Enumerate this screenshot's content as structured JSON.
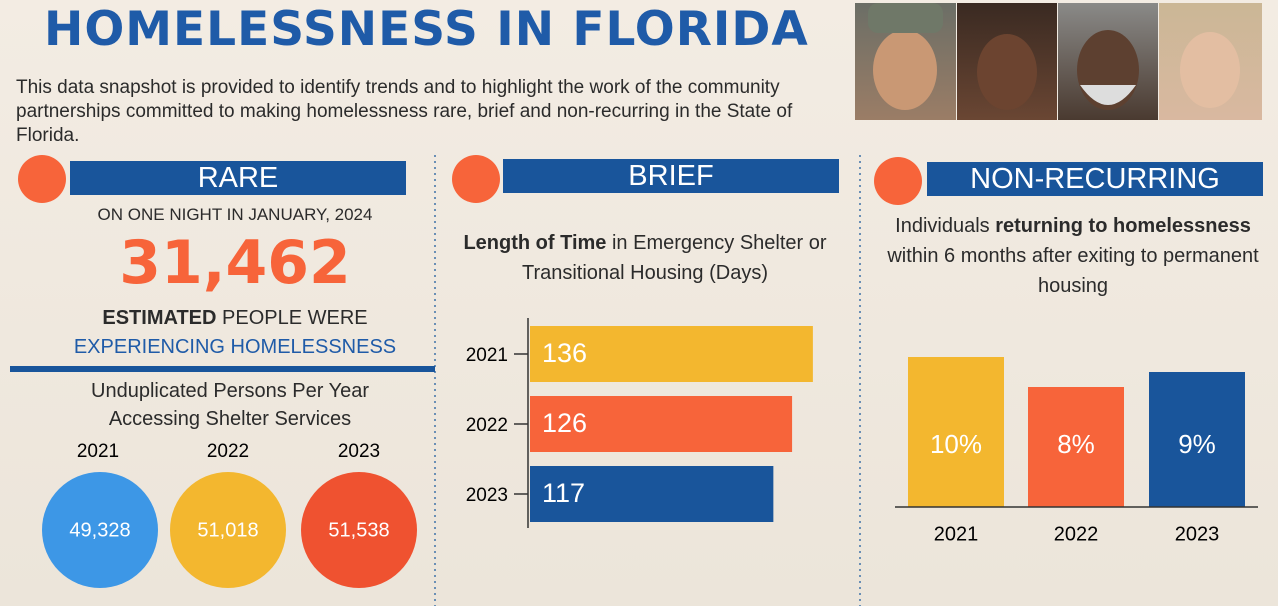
{
  "header": {
    "title": "HOMELESSNESS IN FLORIDA",
    "intro": "This data snapshot is provided to identify trends and to highlight the work of the community partnerships committed to making homelessness rare, brief and non-recurring in the State of Florida."
  },
  "rare": {
    "heading": "RARE",
    "date_line": "ON ONE NIGHT IN JANUARY, 2024",
    "count": "31,462",
    "caption_bold": "ESTIMATED",
    "caption_rest": "PEOPLE WERE",
    "caption_line2": "EXPERIENCING HOMELESSNESS",
    "persons_title": "Unduplicated Persons Per Year Accessing Shelter Services",
    "persons": [
      {
        "year": "2021",
        "count": "49,328",
        "color": "#3d97e6"
      },
      {
        "year": "2022",
        "count": "51,018",
        "color": "#f3b72f"
      },
      {
        "year": "2023",
        "count": "51,538",
        "color": "#ef5230"
      }
    ]
  },
  "brief": {
    "heading": "BRIEF"
  },
  "non_recurring": {
    "heading": "NON-RECURRING"
  },
  "chart_data": [
    {
      "type": "bar",
      "orientation": "horizontal",
      "title_bold": "Length of Time",
      "title_end": "in Emergency Shelter or Transitional Housing (Days)",
      "categories": [
        "2021",
        "2022",
        "2023"
      ],
      "values": [
        136,
        126,
        117
      ],
      "colors": [
        "#f3b72f",
        "#f7643a",
        "#19559b"
      ],
      "xlim": [
        0,
        150
      ]
    },
    {
      "type": "bar",
      "orientation": "vertical",
      "title_start": "Individuals",
      "title_bold": "returning to homelessness",
      "title_end": "within 6 months after exiting to permanent housing",
      "categories": [
        "2021",
        "2022",
        "2023"
      ],
      "values": [
        10,
        8,
        9
      ],
      "value_labels": [
        "10%",
        "8%",
        "9%"
      ],
      "colors": [
        "#f3b72f",
        "#f7643a",
        "#19559b"
      ],
      "ylim": [
        0,
        10
      ]
    }
  ]
}
